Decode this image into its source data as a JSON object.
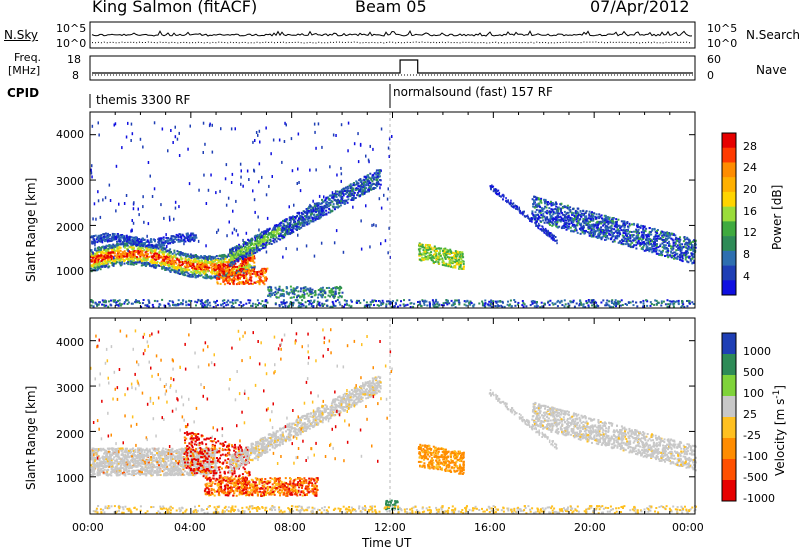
{
  "header": {
    "station": "King Salmon (fitACF)",
    "beam": "Beam 05",
    "date": "07/Apr/2012"
  },
  "strip_noise": {
    "left_label": "N.Sky",
    "right_label": "N.Search",
    "left_ticks": [
      "10^5",
      "10^0"
    ],
    "right_ticks": [
      "10^5",
      "10^0"
    ]
  },
  "strip_freq": {
    "left_label_1": "Freq.",
    "left_label_2": "[MHz]",
    "left_ticks": [
      "18",
      "8"
    ],
    "right_ticks": [
      "60",
      "0"
    ],
    "right_label": "Nave"
  },
  "strip_cpid": {
    "label": "CPID",
    "segments": [
      {
        "name": "themis 3300 RF",
        "start_hour": 0
      },
      {
        "name": "normalsound (fast) 157 RF",
        "start_hour": 12
      }
    ]
  },
  "chart_data": [
    {
      "type": "heatmap",
      "panel": "power",
      "ylabel": "Slant Range [km]",
      "yticks": [
        "4000",
        "3000",
        "2000",
        "1000"
      ],
      "ylim": [
        180,
        4500
      ],
      "xlim": [
        0,
        24
      ],
      "colorbar_label": "Power [dB]",
      "colorbar_ticks": [
        "28",
        "24",
        "20",
        "16",
        "12",
        "8",
        "4"
      ],
      "colorbar_colors": [
        "#e60000",
        "#ff3a00",
        "#ff8c00",
        "#ffb000",
        "#ffd400",
        "#9adc3a",
        "#3faa3f",
        "#2e8b57",
        "#2e6fb0",
        "#1f3fb5",
        "#1010e0"
      ],
      "regions": [
        {
          "name": "near-range band",
          "x": [
            0,
            6.5
          ],
          "y": [
            1000,
            1700
          ],
          "peak_db": 28
        },
        {
          "name": "rising arc",
          "x": [
            5.5,
            11.5
          ],
          "y": [
            1300,
            3200
          ],
          "peak_db": 16
        },
        {
          "name": "post-noon patch",
          "x": [
            13,
            14.8
          ],
          "y": [
            1100,
            1700
          ],
          "peak_db": 20
        },
        {
          "name": "evening arc",
          "x": [
            16.5,
            24
          ],
          "y": [
            1300,
            2700
          ],
          "peak_db": 12
        }
      ]
    },
    {
      "type": "heatmap",
      "panel": "velocity",
      "ylabel": "Slant Range [km]",
      "yticks": [
        "4000",
        "3000",
        "2000",
        "1000"
      ],
      "ylim": [
        180,
        4500
      ],
      "xlim": [
        0,
        24
      ],
      "xlabel": "Time UT",
      "xticks": [
        "00:00",
        "04:00",
        "08:00",
        "12:00",
        "16:00",
        "20:00",
        "00:00"
      ],
      "colorbar_label": "Velocity [m s",
      "colorbar_label_sup": "-1",
      "colorbar_label_end": "]",
      "colorbar_ticks": [
        "1000",
        "500",
        "100",
        "25",
        "-25",
        "-100",
        "-500",
        "-1000"
      ],
      "colorbar_colors": [
        "#1f3fb5",
        "#2e8b57",
        "#7fd33a",
        "#c8c8c8",
        "#ffc020",
        "#ff8c00",
        "#ff5000",
        "#e60000"
      ],
      "regions": [
        {
          "name": "ground scatter band",
          "x": [
            0,
            5
          ],
          "y": [
            1000,
            1700
          ],
          "velocity": 0
        },
        {
          "name": "red streaks",
          "x": [
            3.7,
            6.3
          ],
          "y": [
            900,
            2300
          ],
          "velocity": -1000
        },
        {
          "name": "orange low patch",
          "x": [
            4.5,
            9
          ],
          "y": [
            550,
            1100
          ],
          "velocity": -300
        },
        {
          "name": "grey arc",
          "x": [
            5.5,
            11.5
          ],
          "y": [
            1300,
            3200
          ],
          "velocity": 0
        },
        {
          "name": "orange patch",
          "x": [
            13,
            14.8
          ],
          "y": [
            1100,
            1800
          ],
          "velocity": -100
        },
        {
          "name": "grey evening arc",
          "x": [
            16.5,
            24
          ],
          "y": [
            1300,
            2700
          ],
          "velocity": 0
        }
      ]
    }
  ]
}
